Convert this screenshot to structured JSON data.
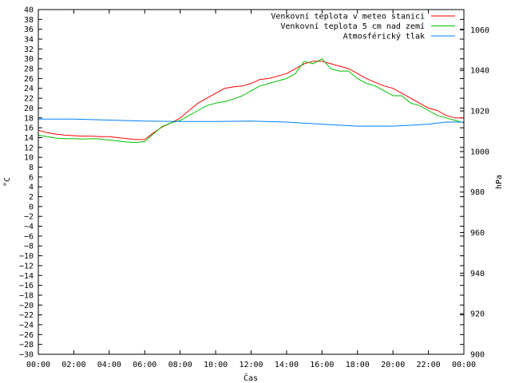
{
  "chart_data": {
    "type": "line",
    "xlabel": "Čas",
    "ylabel_left": "°C",
    "ylabel_right": "hPa",
    "x_ticks": [
      "00:00",
      "02:00",
      "04:00",
      "06:00",
      "08:00",
      "10:00",
      "12:00",
      "14:00",
      "16:00",
      "18:00",
      "20:00",
      "22:00",
      "00:00"
    ],
    "x_range_hours": [
      0,
      24
    ],
    "y_left_range": [
      -30,
      40
    ],
    "y_left_step": 2,
    "y_right_range": [
      900,
      1070
    ],
    "y_right_ticks": [
      900,
      920,
      940,
      960,
      980,
      1000,
      1020,
      1040,
      1060
    ],
    "legend_position": "top-right",
    "grid": false,
    "series": [
      {
        "name": "Venkovní teplota v meteo stanici",
        "axis": "left",
        "color": "#ff0000",
        "x": [
          0,
          0.5,
          1,
          1.5,
          2,
          2.5,
          3,
          3.5,
          4,
          4.5,
          5,
          5.5,
          6,
          6.5,
          7,
          7.5,
          8,
          8.5,
          9,
          9.5,
          10,
          10.5,
          11,
          11.5,
          12,
          12.5,
          13,
          13.5,
          14,
          14.5,
          15,
          15.5,
          16,
          16.5,
          17,
          17.5,
          18,
          18.5,
          19,
          19.5,
          20,
          20.5,
          21,
          21.5,
          22,
          22.5,
          23,
          23.5,
          24
        ],
        "y": [
          15.5,
          15,
          14.7,
          14.5,
          14.4,
          14.3,
          14.3,
          14.2,
          14.2,
          14,
          13.8,
          13.6,
          13.6,
          15,
          16.2,
          17,
          18,
          19.5,
          21,
          22,
          23,
          24,
          24.3,
          24.5,
          25,
          25.8,
          26,
          26.5,
          27,
          28,
          29,
          29.5,
          29.5,
          29,
          28.5,
          28,
          27,
          26,
          25.2,
          24.5,
          24,
          23,
          22,
          21,
          20,
          19.5,
          18.5,
          18,
          18
        ]
      },
      {
        "name": "Venkovní teplota 5 cm nad zemí",
        "axis": "left",
        "color": "#00c000",
        "x": [
          0,
          0.5,
          1,
          1.5,
          2,
          2.5,
          3,
          3.5,
          4,
          4.5,
          5,
          5.5,
          6,
          6.5,
          7,
          7.5,
          8,
          8.5,
          9,
          9.5,
          10,
          10.5,
          11,
          11.5,
          12,
          12.5,
          13,
          13.5,
          14,
          14.5,
          15,
          15.5,
          16,
          16.5,
          17,
          17.5,
          18,
          18.5,
          19,
          19.5,
          20,
          20.5,
          21,
          21.5,
          22,
          22.5,
          23,
          23.5,
          24
        ],
        "y": [
          14.5,
          14.2,
          13.9,
          13.8,
          13.8,
          13.7,
          13.8,
          13.7,
          13.5,
          13.3,
          13.1,
          13,
          13.2,
          14.8,
          16.3,
          17,
          17.5,
          18.5,
          19.5,
          20.5,
          21,
          21.3,
          21.8,
          22.5,
          23.5,
          24.5,
          25,
          25.5,
          26,
          27,
          29.5,
          29,
          30,
          28,
          27.5,
          27.5,
          26,
          25,
          24.5,
          23.5,
          22.5,
          22.5,
          21,
          20.5,
          19.5,
          18.5,
          18,
          17.5,
          17
        ]
      },
      {
        "name": "Atmosférický tlak",
        "axis": "right",
        "color": "#0080ff",
        "x": [
          0,
          2,
          4,
          6,
          8,
          10,
          12,
          14,
          16,
          18,
          20,
          22,
          23,
          24
        ],
        "y": [
          1016,
          1016,
          1015.5,
          1015,
          1014.8,
          1014.8,
          1015,
          1014.5,
          1013.5,
          1012.5,
          1012.5,
          1013.5,
          1014.5,
          1014.5
        ]
      }
    ]
  }
}
